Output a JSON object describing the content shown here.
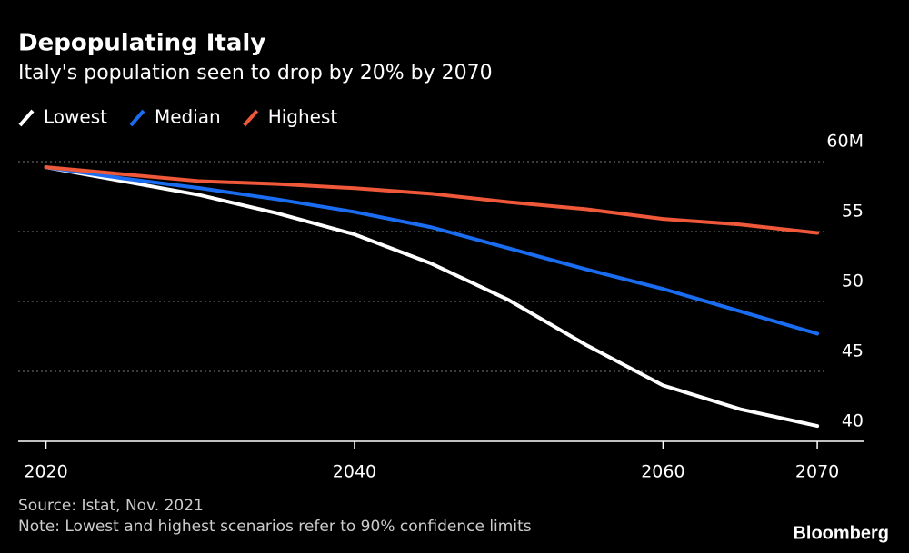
{
  "chart_data": {
    "type": "line",
    "title": "Depopulating Italy",
    "subtitle": "Italy's population seen to drop by 20% by 2070",
    "x": [
      2020,
      2025,
      2030,
      2035,
      2040,
      2045,
      2050,
      2055,
      2060,
      2065,
      2070
    ],
    "series": [
      {
        "name": "Lowest",
        "color": "#ffffff",
        "values": [
          59.6,
          58.6,
          57.6,
          56.3,
          54.8,
          52.7,
          50.1,
          46.9,
          44.0,
          42.3,
          41.1
        ]
      },
      {
        "name": "Median",
        "color": "#1a6cf0",
        "values": [
          59.6,
          58.8,
          58.1,
          57.3,
          56.4,
          55.3,
          53.8,
          52.3,
          50.9,
          49.3,
          47.7
        ]
      },
      {
        "name": "Highest",
        "color": "#f0583a",
        "values": [
          59.6,
          59.1,
          58.6,
          58.4,
          58.1,
          57.7,
          57.1,
          56.6,
          55.9,
          55.5,
          54.9
        ]
      }
    ],
    "xlim": [
      2018.2,
      2073
    ],
    "xticks": [
      2020,
      2040,
      2060,
      2070
    ],
    "ylim": [
      40,
      60
    ],
    "yticks": [
      40,
      45,
      50,
      {
        "value": 55,
        "label": "55"
      },
      {
        "value": 60,
        "label": "60M"
      }
    ],
    "grid": true,
    "legend": "top-left",
    "source": "Source: Istat, Nov. 2021",
    "note": "Note: Lowest and highest scenarios refer to 90% confidence limits",
    "logo": "Bloomberg"
  }
}
